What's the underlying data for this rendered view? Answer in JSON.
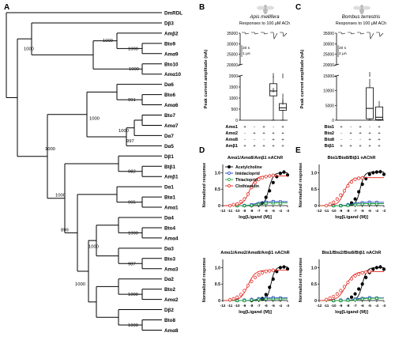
{
  "panels": {
    "A": "A",
    "B": "B",
    "C": "C",
    "D": "D",
    "E": "E"
  },
  "tree": {
    "taxa": [
      "DmRDL",
      "Dβ3",
      "Amβ2",
      "Bto9",
      "Amα9",
      "Bto10",
      "Amα10",
      "Dα6",
      "Bto6",
      "Amα6",
      "Bto7",
      "Amα7",
      "Dα7",
      "Dα5",
      "Dβ1",
      "Btβ1",
      "Amβ1",
      "Dα1",
      "Btα1",
      "Amα1",
      "Dα4",
      "Bto4",
      "Amα4",
      "Dα3",
      "Bto3",
      "Amα3",
      "Dα2",
      "Bto2",
      "Amα2",
      "Dβ2",
      "Bto8",
      "Amα8"
    ],
    "bootstraps": [
      "1000",
      "1000",
      "1000",
      "1000",
      "991",
      "1000",
      "997",
      "1000",
      "982",
      "995",
      "1000",
      "987",
      "1000",
      "1000",
      "1000",
      "1000",
      "899",
      "1000",
      "1000",
      "1000",
      "1000"
    ]
  },
  "chart_data": [
    {
      "id": "B",
      "type": "box",
      "title": "Apis mellifera",
      "subtitle": "Responses to 100 μM ACh",
      "ylabel": "Peak current amplitude (nA)",
      "yticks_top": [
        "20000",
        "25000",
        "30000",
        "35000"
      ],
      "yticks_bottom": [
        "0",
        "500",
        "1000",
        "1500",
        "2000"
      ],
      "trace_scale": [
        "20 s",
        "1 μA"
      ],
      "rows": [
        "Amα1",
        "Amα2",
        "Amα8",
        "Amβ1"
      ],
      "matrix": [
        [
          "+",
          "-",
          "+",
          "-",
          "+"
        ],
        [
          "-",
          "+",
          "+",
          "+",
          "+"
        ],
        [
          "-",
          "-",
          "-",
          "+",
          "+"
        ],
        [
          "+",
          "+",
          "+",
          "+",
          "+"
        ]
      ],
      "boxes": [
        {
          "group": 4,
          "whisker_low": 0,
          "q1": 1100,
          "median": 1320,
          "q3": 1650,
          "whisker_high": 3000,
          "outliers": [
            8000,
            15000
          ]
        },
        {
          "group": 5,
          "whisker_low": 0,
          "q1": 450,
          "median": 560,
          "q3": 750,
          "whisker_high": 1200,
          "outliers": [
            2000,
            2300
          ]
        }
      ]
    },
    {
      "id": "C",
      "type": "box",
      "title": "Bombus terrestris",
      "subtitle": "Responses to 100 μM ACh",
      "ylabel": "Peak current amplitude (nA)",
      "yticks_top": [
        "20000",
        "25000",
        "30000",
        "35000"
      ],
      "yticks_bottom": [
        "0",
        "5000",
        "10000",
        "15000"
      ],
      "trace_scale": [
        "20 s",
        "2 μA"
      ],
      "rows": [
        "Btα1",
        "Btα2",
        "Btα8",
        "Btβ1"
      ],
      "matrix": [
        [
          "+",
          "-",
          "+",
          "-",
          "+"
        ],
        [
          "-",
          "+",
          "+",
          "+",
          "+"
        ],
        [
          "-",
          "-",
          "-",
          "+",
          "+"
        ],
        [
          "+",
          "+",
          "+",
          "+",
          "+"
        ]
      ],
      "boxes": [
        {
          "group": 4,
          "whisker_low": 0,
          "q1": 500,
          "median": 4000,
          "q3": 11000,
          "whisker_high": 14000,
          "outliers": [
            15500
          ]
        },
        {
          "group": 5,
          "whisker_low": 0,
          "q1": 200,
          "median": 1000,
          "q3": 4500,
          "whisker_high": 6500,
          "outliers": []
        }
      ]
    },
    {
      "id": "D1",
      "type": "line",
      "title": "Amα1/Amα8/Amβ1 nAChR",
      "xlabel": "log[Ligand (M)]",
      "ylabel": "Normalized response",
      "xlim": [
        -12,
        -3
      ],
      "ylim": [
        0,
        1.25
      ],
      "xticks": [
        "-12",
        "-11",
        "-10",
        "-9",
        "-8",
        "-7",
        "-6",
        "-5",
        "-4",
        "-3"
      ],
      "yticks": [
        "0",
        "0.5",
        "1.0"
      ],
      "legend": [
        "Acetylcholine",
        "Imidacloprid",
        "Thiacloprid",
        "Clothianidin"
      ],
      "colors": [
        "#000000",
        "#1f3fbf",
        "#19a23a",
        "#e4261e"
      ],
      "series": [
        {
          "name": "Acetylcholine",
          "logEC50": -5.6,
          "top": 1.0,
          "hill": 1.4,
          "x": [
            -8,
            -7,
            -6.5,
            -6,
            -5.5,
            -5,
            -4.5,
            -4,
            -3.5,
            -3
          ],
          "y": [
            0,
            0.02,
            0.08,
            0.25,
            0.45,
            0.7,
            0.88,
            0.98,
            1.02,
            0.93
          ]
        },
        {
          "name": "Imidacloprid",
          "logEC50": -7.5,
          "top": 0.12,
          "hill": 1,
          "x": [
            -10,
            -9,
            -8,
            -7,
            -6,
            -5,
            -4
          ],
          "y": [
            0,
            0,
            0.02,
            0.06,
            0.1,
            0.12,
            0.11
          ]
        },
        {
          "name": "Thiacloprid",
          "logEC50": -7.5,
          "top": 0.08,
          "hill": 1,
          "x": [
            -10,
            -9,
            -8,
            -7,
            -6,
            -5,
            -4
          ],
          "y": [
            0,
            0,
            0.01,
            0.04,
            0.07,
            0.08,
            0.07
          ]
        },
        {
          "name": "Clothianidin",
          "logEC50": -8.3,
          "top": 0.9,
          "hill": 1,
          "x": [
            -11,
            -10.5,
            -10,
            -9.5,
            -9,
            -8.5,
            -8,
            -7.5,
            -7,
            -6.5,
            -6,
            -5.5,
            -5
          ],
          "y": [
            0,
            0.03,
            0.05,
            0.12,
            0.2,
            0.35,
            0.55,
            0.7,
            0.8,
            0.85,
            0.88,
            0.9,
            0.92
          ]
        }
      ]
    },
    {
      "id": "E1",
      "type": "line",
      "title": "Btα1/Btα8/Btβ1 nAChR",
      "xlabel": "log[Ligand (M)]",
      "ylabel": "Normalized response",
      "xlim": [
        -12,
        -3
      ],
      "ylim": [
        0,
        1.25
      ],
      "xticks": [
        "-12",
        "-11",
        "-10",
        "-9",
        "-8",
        "-7",
        "-6",
        "-5",
        "-4",
        "-3"
      ],
      "yticks": [
        "0",
        "0.5",
        "1.0"
      ],
      "colors": [
        "#000000",
        "#1f3fbf",
        "#19a23a",
        "#e4261e"
      ],
      "series": [
        {
          "name": "Acetylcholine",
          "logEC50": -6.3,
          "top": 1.02,
          "hill": 1.5,
          "x": [
            -9,
            -8,
            -7.5,
            -7,
            -6.5,
            -6,
            -5.5,
            -5,
            -4.5,
            -4,
            -3.5,
            -3
          ],
          "y": [
            0,
            0.02,
            0.08,
            0.2,
            0.42,
            0.65,
            0.82,
            0.95,
            1.0,
            1.02,
            1.03,
            0.95
          ]
        },
        {
          "name": "Imidacloprid",
          "logEC50": -7.5,
          "top": 0.1,
          "hill": 1,
          "x": [
            -10,
            -9,
            -8,
            -7,
            -6,
            -5,
            -4
          ],
          "y": [
            0,
            0,
            0.02,
            0.05,
            0.08,
            0.1,
            0.09
          ]
        },
        {
          "name": "Thiacloprid",
          "logEC50": -7.5,
          "top": 0.06,
          "hill": 1,
          "x": [
            -10,
            -9,
            -8,
            -7,
            -6,
            -5,
            -4
          ],
          "y": [
            0,
            0,
            0.01,
            0.03,
            0.05,
            0.06,
            0.05
          ]
        },
        {
          "name": "Clothianidin",
          "logEC50": -8.5,
          "top": 0.85,
          "hill": 1,
          "x": [
            -11,
            -10.5,
            -10,
            -9.5,
            -9,
            -8.5,
            -8,
            -7.5,
            -7,
            -6.5,
            -6
          ],
          "y": [
            0,
            0.04,
            0.1,
            0.2,
            0.32,
            0.45,
            0.6,
            0.72,
            0.8,
            0.83,
            0.84
          ]
        }
      ]
    },
    {
      "id": "D2",
      "type": "line",
      "title": "Amα1/Amα2/Amα8/Amβ1 nAChR",
      "xlabel": "log[Ligand (M)]",
      "ylabel": "Normalized response",
      "xlim": [
        -12,
        -3
      ],
      "ylim": [
        0,
        1.25
      ],
      "xticks": [
        "-12",
        "-11",
        "-10",
        "-9",
        "-8",
        "-7",
        "-6",
        "-5",
        "-4",
        "-3"
      ],
      "yticks": [
        "0",
        "0.5",
        "1.0"
      ],
      "colors": [
        "#000000",
        "#1f3fbf",
        "#19a23a",
        "#e4261e"
      ],
      "series": [
        {
          "name": "Acetylcholine",
          "logEC50": -5.3,
          "top": 1.02,
          "hill": 1.6,
          "x": [
            -8,
            -7,
            -6.5,
            -6,
            -5.5,
            -5,
            -4.5,
            -4,
            -3.5,
            -3
          ],
          "y": [
            0,
            0.02,
            0.06,
            0.18,
            0.4,
            0.65,
            0.88,
            1.0,
            1.02,
            0.96
          ]
        },
        {
          "name": "Imidacloprid",
          "logEC50": -7.2,
          "top": 0.08,
          "hill": 1,
          "x": [
            -10,
            -9,
            -8,
            -7,
            -6,
            -5,
            -4
          ],
          "y": [
            0,
            0.01,
            0.03,
            0.05,
            0.07,
            0.08,
            0.07
          ]
        },
        {
          "name": "Thiacloprid",
          "logEC50": -7.2,
          "top": 0.05,
          "hill": 1,
          "x": [
            -10,
            -9,
            -8,
            -7,
            -6,
            -5,
            -4
          ],
          "y": [
            0,
            0,
            0.02,
            0.03,
            0.05,
            0.05,
            0.05
          ]
        },
        {
          "name": "Clothianidin",
          "logEC50": -8.5,
          "top": 0.92,
          "hill": 0.9,
          "x": [
            -11,
            -10.5,
            -10,
            -9.5,
            -9,
            -8.5,
            -8,
            -7.5,
            -7,
            -6.5,
            -6,
            -5.5,
            -5
          ],
          "y": [
            0.02,
            0.05,
            0.1,
            0.18,
            0.3,
            0.45,
            0.58,
            0.7,
            0.78,
            0.84,
            0.88,
            0.9,
            0.92
          ]
        }
      ]
    },
    {
      "id": "E2",
      "type": "line",
      "title": "Btα1/Btα2/Btα8/Btβ1 nAChR",
      "xlabel": "log[Ligand (M)]",
      "ylabel": "Normalized response",
      "xlim": [
        -12,
        -3
      ],
      "ylim": [
        0,
        1.25
      ],
      "xticks": [
        "-12",
        "-11",
        "-10",
        "-9",
        "-8",
        "-7",
        "-6",
        "-5",
        "-4",
        "-3"
      ],
      "yticks": [
        "0",
        "0.5",
        "1.0"
      ],
      "colors": [
        "#000000",
        "#1f3fbf",
        "#19a23a",
        "#e4261e"
      ],
      "series": [
        {
          "name": "Acetylcholine",
          "logEC50": -6.0,
          "top": 1.0,
          "hill": 1.4,
          "x": [
            -9,
            -8,
            -7.5,
            -7,
            -6.5,
            -6,
            -5.5,
            -5,
            -4.5,
            -4,
            -3.5,
            -3
          ],
          "y": [
            0,
            0.03,
            0.1,
            0.2,
            0.35,
            0.5,
            0.7,
            0.85,
            0.95,
            1.0,
            1.02,
            0.95
          ]
        },
        {
          "name": "Imidacloprid",
          "logEC50": -7,
          "top": 0.08,
          "hill": 1,
          "x": [
            -10,
            -9,
            -8,
            -7,
            -6,
            -5,
            -4
          ],
          "y": [
            0,
            0.01,
            0.02,
            0.04,
            0.06,
            0.08,
            0.07
          ]
        },
        {
          "name": "Thiacloprid",
          "logEC50": -6.5,
          "top": 0.07,
          "hill": 1,
          "x": [
            -10,
            -9,
            -8,
            -7,
            -6,
            -5,
            -4
          ],
          "y": [
            0,
            0,
            0.01,
            0.03,
            0.05,
            0.06,
            0.07
          ]
        },
        {
          "name": "Clothianidin",
          "logEC50": -8.3,
          "top": 0.88,
          "hill": 0.8,
          "x": [
            -11,
            -10.5,
            -10,
            -9.5,
            -9,
            -8.5,
            -8,
            -7.5,
            -7,
            -6.5,
            -6,
            -5.5,
            -5
          ],
          "y": [
            0.03,
            0.07,
            0.12,
            0.2,
            0.3,
            0.42,
            0.55,
            0.66,
            0.75,
            0.8,
            0.84,
            0.86,
            0.88
          ]
        }
      ]
    }
  ]
}
